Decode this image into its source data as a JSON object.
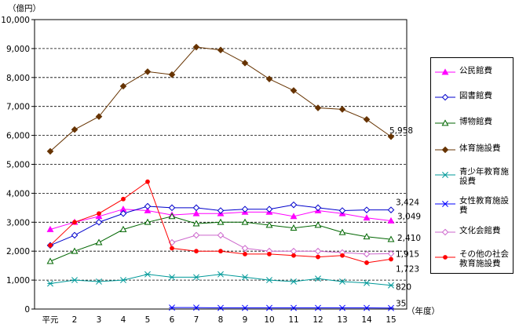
{
  "chart_data": {
    "type": "line",
    "unit_label": "（億円）",
    "x_unit_label": "（年度）",
    "categories": [
      "平元",
      "2",
      "3",
      "4",
      "5",
      "6",
      "7",
      "8",
      "9",
      "10",
      "11",
      "12",
      "13",
      "14",
      "15"
    ],
    "ylim": [
      0,
      10000
    ],
    "yticks": [
      "0",
      "1,000",
      "2,000",
      "3,000",
      "4,000",
      "5,000",
      "6,000",
      "7,000",
      "8,000",
      "9,000",
      "10,000"
    ],
    "grid": "horizontal dashed",
    "legend_position": "right",
    "series": [
      {
        "name": "公民館費",
        "color": "#ff00ff",
        "marker": "triangle-filled",
        "values": [
          2750,
          3000,
          3200,
          3450,
          3400,
          3250,
          3300,
          3300,
          3350,
          3350,
          3200,
          3400,
          3300,
          3150,
          3049
        ]
      },
      {
        "name": "図書館費",
        "color": "#0000cc",
        "marker": "diamond-open",
        "values": [
          2200,
          2550,
          3000,
          3300,
          3550,
          3500,
          3500,
          3400,
          3450,
          3450,
          3600,
          3500,
          3400,
          3424,
          3424
        ]
      },
      {
        "name": "博物館費",
        "color": "#006600",
        "marker": "triangle-open",
        "values": [
          1650,
          2000,
          2300,
          2750,
          3000,
          3200,
          2950,
          3000,
          3000,
          2900,
          2800,
          2900,
          2650,
          2500,
          2410
        ]
      },
      {
        "name": "体育施設費",
        "color": "#663300",
        "marker": "diamond-filled",
        "values": [
          5450,
          6200,
          6650,
          7700,
          8200,
          8100,
          9050,
          8950,
          8500,
          7950,
          7550,
          6950,
          6900,
          6550,
          5958
        ]
      },
      {
        "name": "青少年教育施設費",
        "color": "#009999",
        "marker": "star",
        "values": [
          880,
          1000,
          950,
          1000,
          1200,
          1100,
          1100,
          1200,
          1100,
          1000,
          950,
          1050,
          950,
          900,
          820
        ]
      },
      {
        "name": "女性教育施設費",
        "color": "#0000ff",
        "marker": "star",
        "values": [
          null,
          null,
          null,
          null,
          null,
          50,
          50,
          40,
          40,
          40,
          40,
          40,
          40,
          40,
          35
        ]
      },
      {
        "name": "文化会館費",
        "color": "#cc66cc",
        "marker": "diamond-open",
        "values": [
          null,
          null,
          null,
          null,
          null,
          2300,
          2550,
          2550,
          2100,
          2000,
          2000,
          2000,
          1950,
          1900,
          1915
        ]
      },
      {
        "name": "その他の社会教育施設費",
        "color": "#ff0000",
        "marker": "circle-filled",
        "values": [
          2200,
          3000,
          3300,
          3800,
          4400,
          2100,
          2000,
          2000,
          1900,
          1900,
          1850,
          1800,
          1850,
          1600,
          1723
        ]
      }
    ],
    "end_labels": [
      {
        "series": "体育施設費",
        "text": "5,958"
      },
      {
        "series": "図書館費",
        "text": "3,424"
      },
      {
        "series": "公民館費",
        "text": "3,049"
      },
      {
        "series": "博物館費",
        "text": "2,410"
      },
      {
        "series": "文化会館費",
        "text": "1,915"
      },
      {
        "series": "その他の社会教育施設費",
        "text": "1,723"
      },
      {
        "series": "青少年教育施設費",
        "text": "820"
      },
      {
        "series": "女性教育施設費",
        "text": "35"
      }
    ]
  },
  "legend": {
    "items": [
      {
        "label": "公民館費"
      },
      {
        "label": "図書館費"
      },
      {
        "label": "博物館費"
      },
      {
        "label": "体育施設費"
      },
      {
        "label": "青少年教育施設費"
      },
      {
        "label": "女性教育施設費"
      },
      {
        "label": "文化会館費"
      },
      {
        "label": "その他の社会教育施設費"
      }
    ]
  }
}
